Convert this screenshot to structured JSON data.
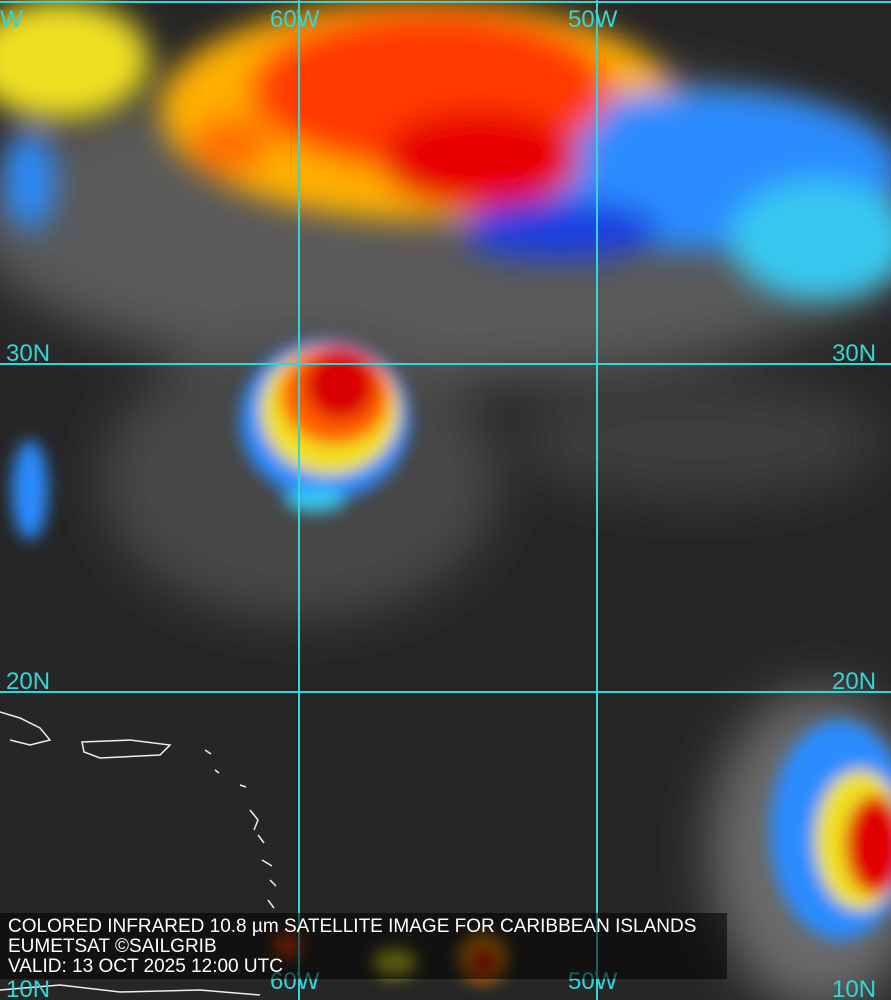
{
  "caption": {
    "title": "COLORED INFRARED 10.8 µm SATELLITE IMAGE FOR CARIBBEAN ISLANDS",
    "credit": "EUMETSAT ©SAILGRIB",
    "valid": "VALID:  13 OCT 2025 12:00 UTC"
  },
  "grid": {
    "longitudes": [
      "W",
      "60W",
      "50W"
    ],
    "latitudes_left": [
      "30N",
      "20N",
      "10N"
    ],
    "latitudes_right": [
      "30N",
      "20N",
      "10N"
    ],
    "bottom_longitudes": [
      "60W",
      "50W"
    ],
    "color": "#33d6d6"
  },
  "colors": {
    "cold_cloud": "#e60000",
    "mid_cloud": "#ffcc00",
    "warm_cloud": "#1f5cff",
    "background": "#262626"
  }
}
